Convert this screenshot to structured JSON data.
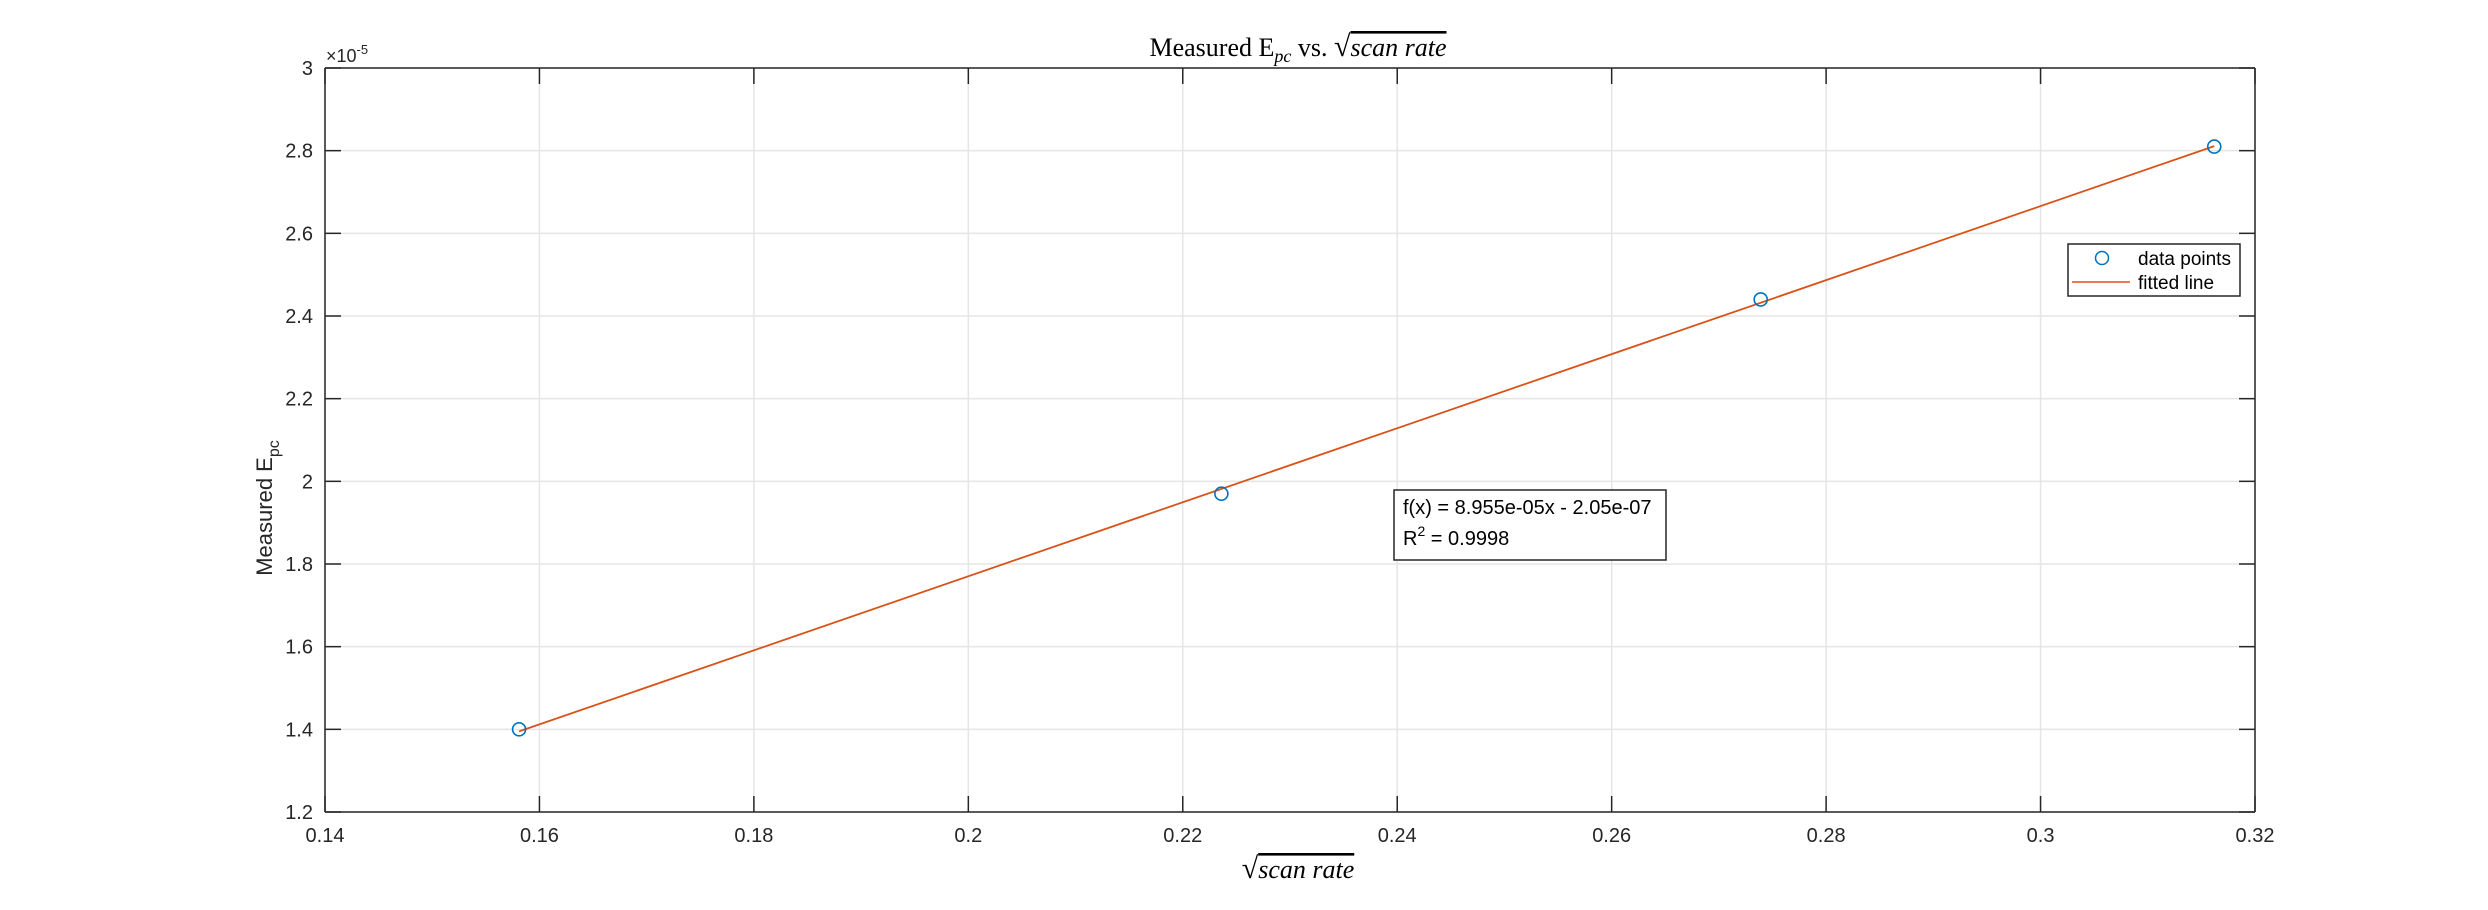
{
  "colors": {
    "data_points": "#0072bd",
    "fitted_line": "#d95319",
    "axis": "#262626",
    "grid": "#e5e5e5"
  },
  "chart_data": {
    "type": "scatter",
    "title": {
      "prefix": "Measured E",
      "subscript": "pc",
      "middle": " vs. ",
      "radicand": "scan rate"
    },
    "xlabel": {
      "radicand": "scan rate"
    },
    "ylabel": {
      "prefix": "Measured E",
      "subscript": "pc"
    },
    "xlim": [
      0.14,
      0.32
    ],
    "ylim": [
      1.2e-05,
      3e-05
    ],
    "xticks": [
      0.14,
      0.16,
      0.18,
      0.2,
      0.22,
      0.24,
      0.26,
      0.28,
      0.3,
      0.32
    ],
    "xtick_labels": [
      "0.14",
      "0.16",
      "0.18",
      "0.2",
      "0.22",
      "0.24",
      "0.26",
      "0.28",
      "0.3",
      "0.32"
    ],
    "yticks": [
      1.2,
      1.4,
      1.6,
      1.8,
      2.0,
      2.2,
      2.4,
      2.6,
      2.8,
      3.0
    ],
    "ytick_labels": [
      "1.2",
      "1.4",
      "1.6",
      "1.8",
      "2",
      "2.2",
      "2.4",
      "2.6",
      "2.8",
      "3"
    ],
    "y_exponent": {
      "base": "×10",
      "exp": "-5"
    },
    "grid": true,
    "legend_position": "right",
    "series": [
      {
        "name": "data points",
        "kind": "markers",
        "x": [
          0.1581,
          0.2236,
          0.2739,
          0.3162
        ],
        "y": [
          1.4e-05,
          1.97e-05,
          2.44e-05,
          2.81e-05
        ]
      },
      {
        "name": "fitted line",
        "kind": "line",
        "x": [
          0.1581,
          0.3162
        ],
        "y": [
          1.395e-05,
          2.811e-05
        ]
      }
    ],
    "annotation": {
      "line1": "f(x) = 8.955e-05x - 2.05e-07",
      "line2_prefix": "R",
      "line2_sup": "2",
      "line2_value": " = 0.9998"
    }
  }
}
